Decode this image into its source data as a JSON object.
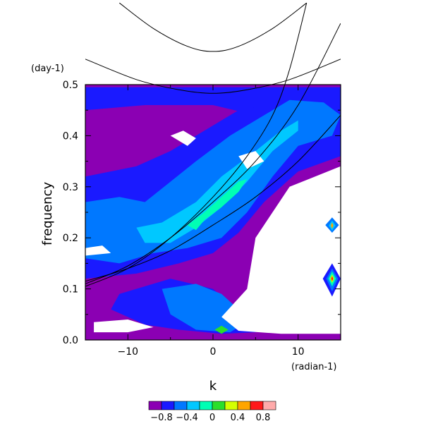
{
  "chart_data": {
    "type": "heatmap",
    "xlabel": "k",
    "ylabel": "frequency",
    "x_unit": "(radian-1)",
    "y_unit": "(day-1)",
    "xlim": [
      -15,
      15
    ],
    "ylim": [
      0,
      0.5
    ],
    "x_ticks": [
      -10,
      0,
      10
    ],
    "x_tick_labels": [
      "−10",
      "0",
      "10"
    ],
    "y_ticks": [
      0.0,
      0.1,
      0.2,
      0.3,
      0.4,
      0.5
    ],
    "y_tick_labels": [
      "0.0",
      "0.1",
      "0.2",
      "0.3",
      "0.4",
      "0.5"
    ],
    "colorbar": {
      "levels": [
        -1.0,
        -0.8,
        -0.6,
        -0.4,
        -0.2,
        0,
        0.2,
        0.4,
        0.6,
        0.8,
        1.0
      ],
      "colors": [
        "#8b00b3",
        "#1a1aff",
        "#0078ff",
        "#00c8ff",
        "#00ffb4",
        "#2adf2a",
        "#d4ff00",
        "#ffa500",
        "#ff1a1a",
        "#ffaaaa"
      ],
      "labels": [
        "−0.8",
        "−0.4",
        "0",
        "0.4",
        "0.8"
      ]
    },
    "background_class": -0.9,
    "regions": [
      {
        "level": -0.7,
        "points": [
          [
            -15,
            0.495
          ],
          [
            15,
            0.495
          ],
          [
            15,
            0.44
          ],
          [
            5,
            0.44
          ],
          [
            0,
            0.46
          ],
          [
            -8,
            0.46
          ],
          [
            -15,
            0.45
          ]
        ]
      },
      {
        "level": -0.7,
        "points": [
          [
            -15,
            0.32
          ],
          [
            -9,
            0.34
          ],
          [
            -5,
            0.37
          ],
          [
            -2,
            0.4
          ],
          [
            3,
            0.45
          ],
          [
            10,
            0.47
          ],
          [
            15,
            0.45
          ],
          [
            15,
            0.36
          ],
          [
            10,
            0.33
          ],
          [
            6,
            0.27
          ],
          [
            3,
            0.21
          ],
          [
            0,
            0.17
          ],
          [
            -4,
            0.15
          ],
          [
            -9,
            0.13
          ],
          [
            -15,
            0.12
          ]
        ]
      },
      {
        "level": -0.7,
        "points": [
          [
            -11,
            0.09
          ],
          [
            -5,
            0.12
          ],
          [
            0,
            0.1
          ],
          [
            2,
            0.07
          ],
          [
            4,
            0.05
          ],
          [
            6,
            0.03
          ],
          [
            5,
            0.015
          ],
          [
            1,
            0.012
          ],
          [
            -4,
            0.02
          ],
          [
            -8,
            0.03
          ],
          [
            -12,
            0.06
          ]
        ]
      },
      {
        "level": -0.5,
        "points": [
          [
            -15,
            0.27
          ],
          [
            -11,
            0.28
          ],
          [
            -8,
            0.27
          ],
          [
            -5,
            0.31
          ],
          [
            -2,
            0.35
          ],
          [
            2,
            0.4
          ],
          [
            6,
            0.44
          ],
          [
            9,
            0.47
          ],
          [
            13,
            0.465
          ],
          [
            15,
            0.44
          ],
          [
            14,
            0.4
          ],
          [
            10,
            0.38
          ],
          [
            7,
            0.32
          ],
          [
            4,
            0.25
          ],
          [
            1,
            0.2
          ],
          [
            -3,
            0.18
          ],
          [
            -7,
            0.17
          ],
          [
            -11,
            0.15
          ],
          [
            -15,
            0.16
          ]
        ]
      },
      {
        "level": -0.5,
        "points": [
          [
            -6,
            0.1
          ],
          [
            -2,
            0.11
          ],
          [
            1,
            0.09
          ],
          [
            3,
            0.06
          ],
          [
            4,
            0.035
          ],
          [
            2,
            0.015
          ],
          [
            -2,
            0.02
          ],
          [
            -5,
            0.05
          ]
        ]
      },
      {
        "level": -0.3,
        "points": [
          [
            -9,
            0.22
          ],
          [
            -6,
            0.23
          ],
          [
            -2,
            0.27
          ],
          [
            1,
            0.32
          ],
          [
            5,
            0.37
          ],
          [
            8,
            0.41
          ],
          [
            10,
            0.43
          ],
          [
            10,
            0.41
          ],
          [
            7,
            0.37
          ],
          [
            4,
            0.31
          ],
          [
            1,
            0.26
          ],
          [
            -2,
            0.22
          ],
          [
            -5,
            0.19
          ],
          [
            -8,
            0.19
          ]
        ]
      },
      {
        "level": -0.1,
        "points": [
          [
            -3,
            0.225
          ],
          [
            -1,
            0.25
          ],
          [
            1,
            0.28
          ],
          [
            3,
            0.31
          ],
          [
            4,
            0.315
          ],
          [
            3,
            0.29
          ],
          [
            1,
            0.26
          ],
          [
            -1,
            0.235
          ],
          [
            -2,
            0.215
          ]
        ]
      },
      {
        "level": 0.1,
        "points": [
          [
            0.2,
            0.02
          ],
          [
            1.0,
            0.028
          ],
          [
            1.8,
            0.02
          ],
          [
            1.0,
            0.012
          ]
        ]
      },
      {
        "level": -1.5,
        "points": [
          [
            15,
            0.34
          ],
          [
            9,
            0.3
          ],
          [
            5,
            0.2
          ],
          [
            4,
            0.1
          ],
          [
            1,
            0.045
          ],
          [
            3,
            0.018
          ],
          [
            8,
            0.012
          ],
          [
            15,
            0.012
          ]
        ]
      },
      {
        "level": -1.5,
        "points": [
          [
            -14,
            0.035
          ],
          [
            -10,
            0.04
          ],
          [
            -7,
            0.025
          ],
          [
            -10,
            0.015
          ],
          [
            -14,
            0.015
          ]
        ]
      },
      {
        "level": -1.5,
        "points": [
          [
            -15,
            0.18
          ],
          [
            -13,
            0.185
          ],
          [
            -12,
            0.17
          ],
          [
            -15,
            0.165
          ]
        ]
      },
      {
        "level": -1.5,
        "points": [
          [
            -5,
            0.4
          ],
          [
            -3.5,
            0.41
          ],
          [
            -2,
            0.395
          ],
          [
            -3,
            0.38
          ]
        ]
      },
      {
        "level": -1.5,
        "points": [
          [
            3,
            0.36
          ],
          [
            5,
            0.37
          ],
          [
            6,
            0.35
          ],
          [
            4,
            0.335
          ]
        ]
      },
      {
        "level": -0.5,
        "points": [
          [
            13.2,
            0.225
          ],
          [
            14,
            0.24
          ],
          [
            14.8,
            0.225
          ],
          [
            14,
            0.21
          ]
        ]
      },
      {
        "level": -0.3,
        "points": [
          [
            13.6,
            0.224
          ],
          [
            14,
            0.234
          ],
          [
            14.4,
            0.224
          ],
          [
            14,
            0.214
          ]
        ]
      },
      {
        "level": 0.5,
        "points": [
          [
            13.85,
            0.224
          ],
          [
            14,
            0.23
          ],
          [
            14.15,
            0.224
          ],
          [
            14,
            0.218
          ]
        ]
      },
      {
        "level": -0.7,
        "points": [
          [
            12.9,
            0.12
          ],
          [
            14,
            0.15
          ],
          [
            15,
            0.12
          ],
          [
            14,
            0.085
          ]
        ]
      },
      {
        "level": -0.5,
        "points": [
          [
            13.3,
            0.12
          ],
          [
            14,
            0.14
          ],
          [
            14.7,
            0.12
          ],
          [
            14,
            0.095
          ]
        ]
      },
      {
        "level": -0.1,
        "points": [
          [
            13.55,
            0.12
          ],
          [
            14,
            0.134
          ],
          [
            14.45,
            0.12
          ],
          [
            14,
            0.105
          ]
        ]
      },
      {
        "level": 0.3,
        "points": [
          [
            13.75,
            0.12
          ],
          [
            14,
            0.128
          ],
          [
            14.25,
            0.12
          ],
          [
            14,
            0.112
          ]
        ]
      },
      {
        "level": 0.7,
        "points": [
          [
            13.88,
            0.12
          ],
          [
            14,
            0.125
          ],
          [
            14.12,
            0.12
          ],
          [
            14,
            0.115
          ]
        ]
      }
    ],
    "dispersion_curves": [
      {
        "points": [
          [
            -15,
            0.55
          ],
          [
            -9,
            0.51
          ],
          [
            -4,
            0.49
          ],
          [
            0,
            0.483
          ],
          [
            4,
            0.49
          ],
          [
            9,
            0.51
          ],
          [
            15,
            0.55
          ]
        ]
      },
      {
        "points": [
          [
            -11,
            0.66
          ],
          [
            -7,
            0.61
          ],
          [
            -3,
            0.575
          ],
          [
            0,
            0.565
          ],
          [
            3,
            0.575
          ],
          [
            7,
            0.61
          ],
          [
            11,
            0.66
          ]
        ]
      },
      {
        "points": [
          [
            -15,
            0.105
          ],
          [
            -10,
            0.14
          ],
          [
            -5,
            0.2
          ],
          [
            0,
            0.28
          ],
          [
            4,
            0.36
          ],
          [
            7,
            0.44
          ],
          [
            9,
            0.53
          ],
          [
            11,
            0.66
          ]
        ]
      },
      {
        "points": [
          [
            -15,
            0.11
          ],
          [
            -10,
            0.145
          ],
          [
            -5,
            0.2
          ],
          [
            0,
            0.27
          ],
          [
            5,
            0.35
          ],
          [
            10,
            0.46
          ],
          [
            15,
            0.62
          ]
        ]
      },
      {
        "points": [
          [
            -15,
            0.115
          ],
          [
            -10,
            0.14
          ],
          [
            -5,
            0.175
          ],
          [
            0,
            0.225
          ],
          [
            5,
            0.28
          ],
          [
            10,
            0.35
          ],
          [
            15,
            0.44
          ]
        ]
      }
    ]
  }
}
